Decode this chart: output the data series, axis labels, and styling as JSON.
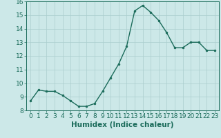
{
  "x": [
    0,
    1,
    2,
    3,
    4,
    5,
    6,
    7,
    8,
    9,
    10,
    11,
    12,
    13,
    14,
    15,
    16,
    17,
    18,
    19,
    20,
    21,
    22,
    23
  ],
  "y": [
    8.7,
    9.5,
    9.4,
    9.4,
    9.1,
    8.7,
    8.3,
    8.3,
    8.5,
    9.4,
    10.4,
    11.4,
    12.7,
    15.3,
    15.7,
    15.2,
    14.6,
    13.7,
    12.6,
    12.6,
    13.0,
    13.0,
    12.4,
    12.4
  ],
  "line_color": "#1a6b5a",
  "marker": "o",
  "marker_size": 2.0,
  "background_color": "#cce8e8",
  "grid_color": "#aacece",
  "xlabel": "Humidex (Indice chaleur)",
  "ylim": [
    8,
    16
  ],
  "xlim": [
    -0.5,
    23.5
  ],
  "yticks": [
    8,
    9,
    10,
    11,
    12,
    13,
    14,
    15,
    16
  ],
  "xticks": [
    0,
    1,
    2,
    3,
    4,
    5,
    6,
    7,
    8,
    9,
    10,
    11,
    12,
    13,
    14,
    15,
    16,
    17,
    18,
    19,
    20,
    21,
    22,
    23
  ],
  "tick_color": "#1a6b5a",
  "label_color": "#1a6b5a",
  "xlabel_fontsize": 7.5,
  "tick_fontsize": 6.5,
  "line_width": 1.0
}
